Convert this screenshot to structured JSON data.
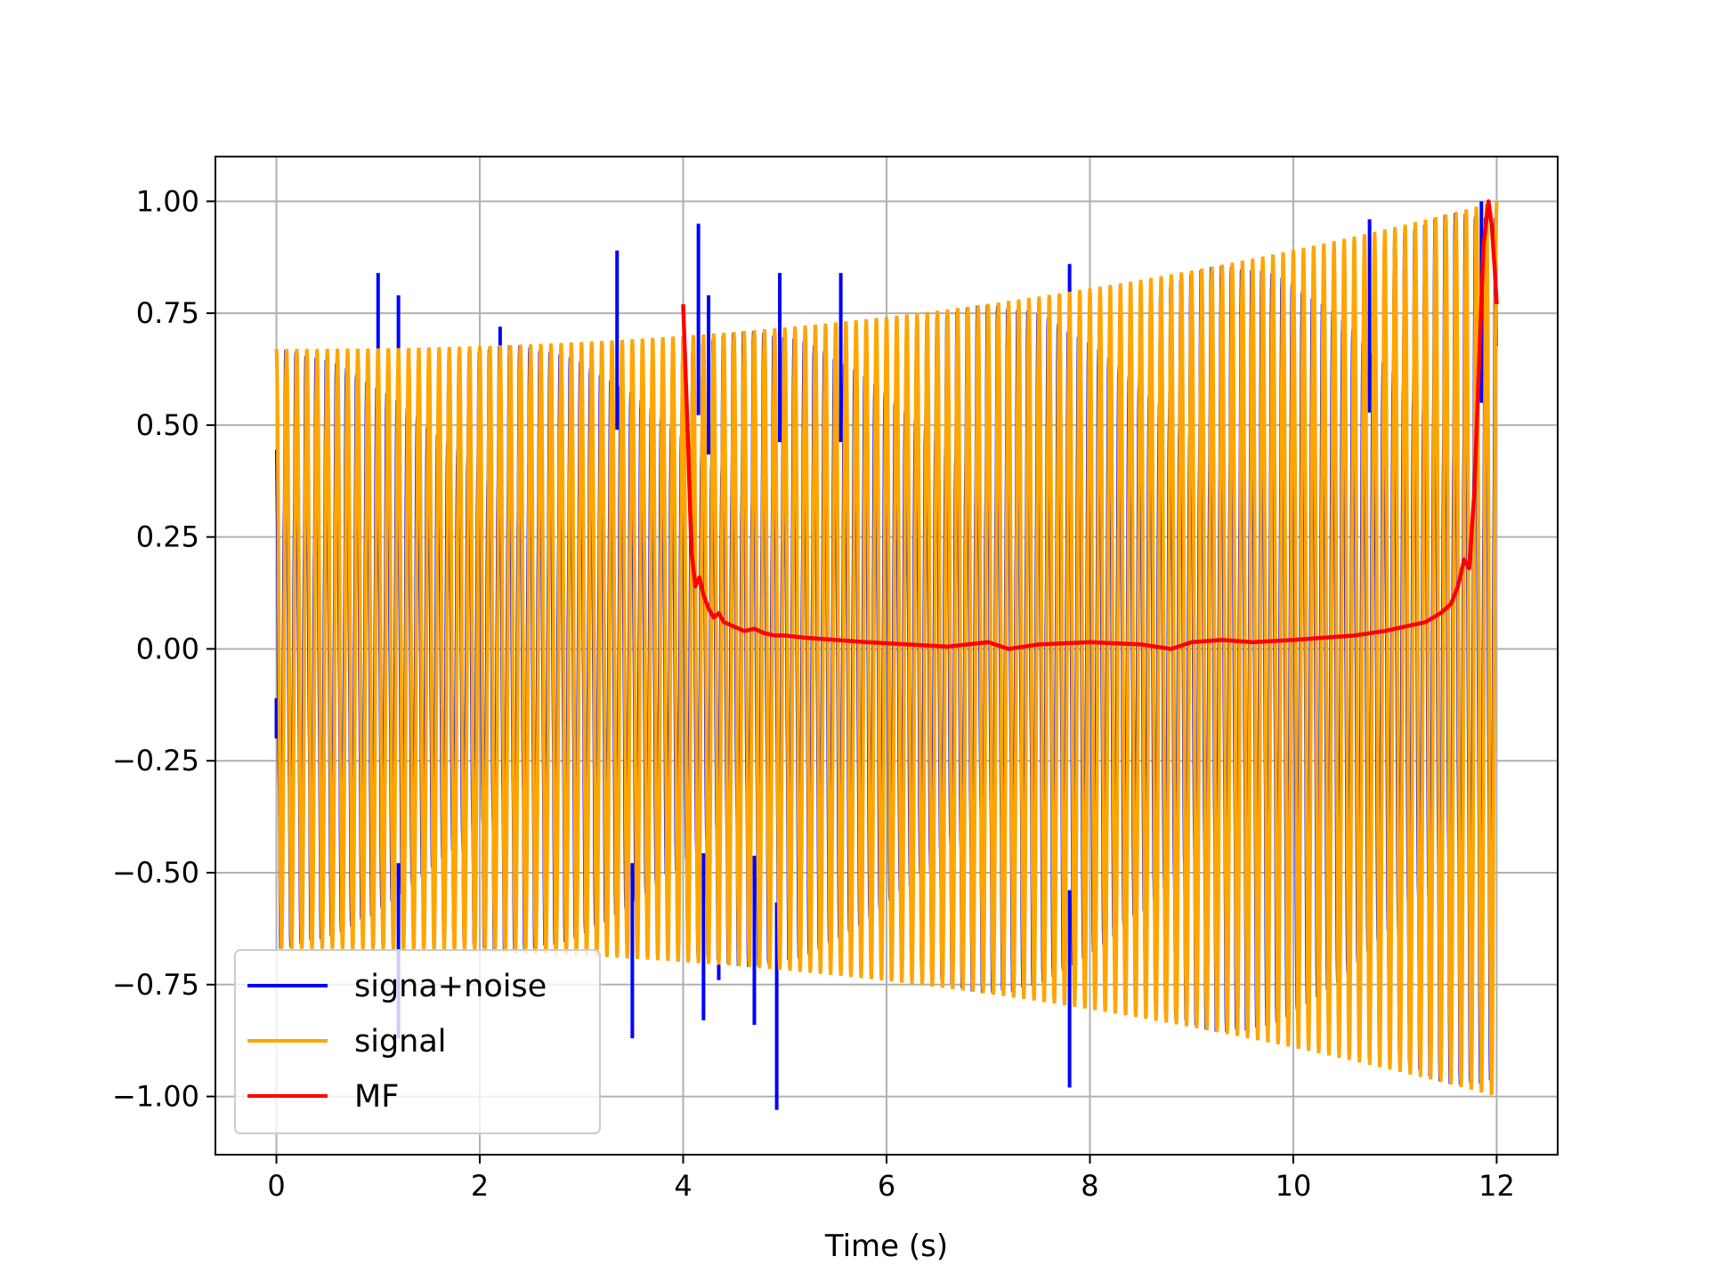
{
  "chart_data": {
    "type": "line",
    "title": "",
    "xlabel": "Time (s)",
    "ylabel": "",
    "xlim": [
      -0.6,
      12.6
    ],
    "ylim": [
      -1.13,
      1.1
    ],
    "x_ticks": [
      0,
      2,
      4,
      6,
      8,
      10,
      12
    ],
    "x_tick_labels": [
      "0",
      "2",
      "4",
      "6",
      "8",
      "10",
      "12"
    ],
    "y_ticks": [
      1.0,
      0.75,
      0.5,
      0.25,
      0.0,
      -0.25,
      -0.5,
      -0.75,
      -1.0
    ],
    "y_tick_labels": [
      "1.00",
      "0.75",
      "0.50",
      "0.25",
      "0.00",
      "−0.25",
      "−0.50",
      "−0.75",
      "−1.00"
    ],
    "grid": true,
    "legend_position": "lower-left",
    "series": [
      {
        "name": "signa+noise",
        "color": "#0000ff",
        "x_range": [
          0,
          12
        ],
        "envelope_start": 0.67,
        "envelope_end": 1.0,
        "spikes": [
          {
            "x": 0.0,
            "y": -0.2
          },
          {
            "x": 1.0,
            "y": 0.84
          },
          {
            "x": 1.2,
            "y": 0.79
          },
          {
            "x": 1.2,
            "y": -0.87
          },
          {
            "x": 2.2,
            "y": 0.72
          },
          {
            "x": 3.35,
            "y": 0.89
          },
          {
            "x": 3.5,
            "y": -0.87
          },
          {
            "x": 4.15,
            "y": 0.95
          },
          {
            "x": 4.2,
            "y": -0.83
          },
          {
            "x": 4.25,
            "y": 0.79
          },
          {
            "x": 4.35,
            "y": -0.74
          },
          {
            "x": 4.7,
            "y": -0.84
          },
          {
            "x": 4.92,
            "y": -1.03
          },
          {
            "x": 4.95,
            "y": 0.84
          },
          {
            "x": 5.55,
            "y": 0.84
          },
          {
            "x": 7.8,
            "y": 0.86
          },
          {
            "x": 7.8,
            "y": -0.98
          },
          {
            "x": 10.75,
            "y": 0.96
          },
          {
            "x": 11.85,
            "y": 1.0
          }
        ]
      },
      {
        "name": "signal",
        "color": "#ffa500",
        "x_range": [
          0,
          12
        ],
        "envelope_start": 0.67,
        "envelope_end": 1.0,
        "cycles": 120
      },
      {
        "name": "MF",
        "color": "#ff0000",
        "x": [
          4.0,
          4.05,
          4.08,
          4.12,
          4.16,
          4.2,
          4.25,
          4.3,
          4.35,
          4.4,
          4.5,
          4.6,
          4.7,
          4.8,
          4.9,
          5.0,
          5.2,
          5.5,
          5.8,
          6.2,
          6.6,
          7.0,
          7.2,
          7.5,
          8.0,
          8.5,
          8.8,
          9.0,
          9.3,
          9.6,
          10.0,
          10.3,
          10.6,
          10.9,
          11.1,
          11.3,
          11.45,
          11.55,
          11.62,
          11.68,
          11.73,
          11.78,
          11.82,
          11.87,
          11.92,
          11.95,
          11.98,
          12.0
        ],
        "y": [
          0.77,
          0.45,
          0.22,
          0.14,
          0.16,
          0.12,
          0.09,
          0.07,
          0.08,
          0.06,
          0.05,
          0.04,
          0.045,
          0.035,
          0.03,
          0.03,
          0.025,
          0.02,
          0.015,
          0.01,
          0.005,
          0.015,
          0.0,
          0.01,
          0.015,
          0.01,
          0.0,
          0.015,
          0.02,
          0.015,
          0.02,
          0.025,
          0.03,
          0.04,
          0.05,
          0.06,
          0.08,
          0.1,
          0.14,
          0.2,
          0.18,
          0.35,
          0.6,
          0.9,
          1.0,
          0.95,
          0.85,
          0.77
        ]
      }
    ]
  }
}
